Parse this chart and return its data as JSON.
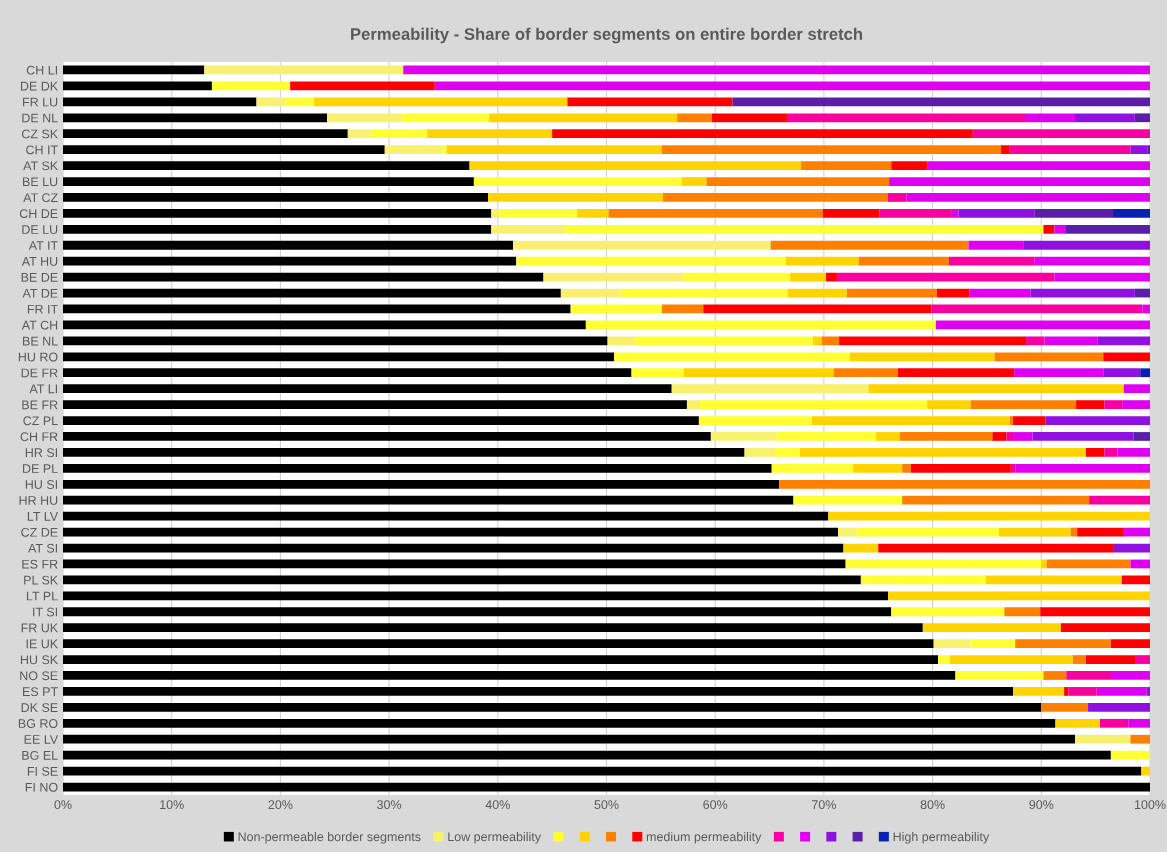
{
  "chart_data": {
    "type": "bar",
    "orientation": "horizontal",
    "stacked": true,
    "title": "Permeability - Share of border segments on entire border stretch",
    "categories": [
      "CH LI",
      "DE DK",
      "FR LU",
      "DE NL",
      "CZ SK",
      "CH IT",
      "AT SK",
      "BE LU",
      "AT CZ",
      "CH DE",
      "DE LU",
      "AT IT",
      "AT HU",
      "BE DE",
      "AT DE",
      "FR IT",
      "AT CH",
      "BE NL",
      "HU RO",
      "DE FR",
      "AT LI",
      "BE FR",
      "CZ PL",
      "CH FR",
      "HR SI",
      "DE PL",
      "HU SI",
      "HR HU",
      "LT LV",
      "CZ DE",
      "AT SI",
      "ES FR",
      "PL SK",
      "LT PL",
      "IT SI",
      "FR UK",
      "IE UK",
      "HU SK",
      "NO SE",
      "ES PT",
      "DK SE",
      "BG RO",
      "EE LV",
      "BG EL",
      "FI SE",
      "FI NO"
    ],
    "series": [
      {
        "name": "Non-permeable border segments",
        "color": "#000000",
        "values": [
          13.0,
          13.7,
          17.8,
          24.3,
          26.2,
          29.6,
          37.4,
          37.8,
          39.1,
          39.4,
          39.4,
          41.4,
          41.7,
          44.2,
          45.8,
          46.7,
          48.1,
          50.1,
          50.7,
          52.3,
          56.0,
          57.4,
          58.5,
          59.6,
          62.7,
          65.2,
          65.9,
          67.2,
          70.4,
          71.3,
          71.8,
          72.0,
          73.4,
          75.9,
          76.2,
          79.1,
          80.1,
          80.5,
          82.1,
          87.4,
          90.0,
          91.3,
          93.1,
          96.4,
          99.2,
          100
        ]
      },
      {
        "name": "Low permeability",
        "color": "#f8f06f",
        "values": [
          18.3,
          null,
          2.6,
          6.9,
          2.1,
          5.3,
          null,
          null,
          null,
          0.7,
          6.8,
          23.7,
          null,
          12.9,
          5.5,
          null,
          null,
          2.6,
          null,
          null,
          18.1,
          1.2,
          null,
          6.1,
          2.8,
          null,
          null,
          null,
          null,
          1.7,
          null,
          null,
          null,
          null,
          null,
          null,
          3.4,
          null,
          null,
          null,
          null,
          null,
          5.1,
          null,
          null,
          null
        ]
      },
      {
        "color": "#ffff33",
        "values": [
          null,
          7.2,
          2.7,
          8.0,
          5.2,
          0.4,
          null,
          19.1,
          null,
          7.2,
          44.0,
          null,
          24.8,
          9.8,
          15.4,
          8.4,
          32.2,
          16.3,
          21.7,
          4.8,
          null,
          20.9,
          10.4,
          9.1,
          2.3,
          7.5,
          null,
          10.0,
          null,
          13.1,
          null,
          18.0,
          11.5,
          null,
          10.4,
          null,
          4.1,
          1.1,
          8.1,
          null,
          null,
          null,
          null,
          3.6,
          null,
          null
        ]
      },
      {
        "color": "#ffd400",
        "values": [
          null,
          null,
          23.3,
          17.3,
          11.5,
          19.8,
          30.5,
          2.3,
          16.1,
          2.9,
          null,
          null,
          6.7,
          3.3,
          5.4,
          null,
          null,
          0.8,
          13.3,
          13.8,
          23.5,
          4.0,
          18.2,
          2.2,
          26.3,
          4.5,
          null,
          null,
          29.6,
          6.6,
          3.2,
          0.5,
          12.5,
          24.1,
          null,
          12.7,
          null,
          11.3,
          null,
          4.7,
          null,
          4.1,
          null,
          null,
          0.8,
          null
        ]
      },
      {
        "color": "#ff8000",
        "values": [
          null,
          null,
          null,
          3.2,
          null,
          31.2,
          8.3,
          16.8,
          20.7,
          19.7,
          null,
          18.2,
          8.3,
          null,
          8.3,
          3.8,
          null,
          1.6,
          10.0,
          5.9,
          null,
          9.7,
          0.3,
          8.5,
          null,
          0.8,
          34.1,
          17.2,
          null,
          0.6,
          null,
          7.7,
          null,
          null,
          3.3,
          null,
          8.8,
          1.2,
          2.1,
          null,
          4.3,
          null,
          1.8,
          null,
          null,
          null
        ]
      },
      {
        "name": "medium permeability",
        "color": "#ff0000",
        "values": [
          null,
          13.3,
          15.2,
          6.9,
          38.7,
          0.8,
          3.3,
          null,
          null,
          5.2,
          1.0,
          null,
          null,
          1.0,
          3.0,
          21.0,
          null,
          17.2,
          4.3,
          10.7,
          null,
          2.6,
          3.0,
          1.3,
          1.7,
          9.2,
          null,
          null,
          null,
          4.3,
          21.6,
          null,
          2.6,
          null,
          10.1,
          8.2,
          3.6,
          4.6,
          null,
          0.4,
          null,
          null,
          null,
          null,
          null,
          null
        ]
      },
      {
        "color": "#f800a0",
        "values": [
          null,
          null,
          null,
          21.9,
          16.3,
          11.1,
          null,
          null,
          1.7,
          6.6,
          null,
          null,
          7.9,
          20.0,
          null,
          19.4,
          null,
          1.7,
          null,
          null,
          null,
          1.7,
          null,
          0.6,
          1.2,
          0.4,
          null,
          5.6,
          null,
          null,
          null,
          null,
          null,
          null,
          null,
          null,
          null,
          1.3,
          4.2,
          2.6,
          null,
          2.6,
          null,
          null,
          null,
          null
        ]
      },
      {
        "color": "#e000f0",
        "values": [
          68.7,
          65.8,
          null,
          4.6,
          null,
          null,
          20.5,
          24.0,
          22.4,
          0.7,
          1.0,
          5.1,
          10.6,
          8.8,
          5.6,
          0.7,
          19.7,
          4.9,
          null,
          8.2,
          2.4,
          2.5,
          null,
          1.8,
          3.0,
          12.4,
          null,
          null,
          null,
          2.4,
          null,
          1.8,
          null,
          null,
          null,
          null,
          null,
          null,
          3.5,
          4.6,
          null,
          2.0,
          null,
          null,
          null,
          null
        ]
      },
      {
        "color": "#9010e0",
        "values": [
          null,
          null,
          null,
          5.5,
          null,
          1.6,
          null,
          null,
          null,
          7.0,
          null,
          11.6,
          null,
          null,
          9.6,
          null,
          null,
          4.8,
          null,
          3.4,
          null,
          null,
          9.6,
          9.3,
          null,
          null,
          null,
          null,
          null,
          null,
          3.4,
          null,
          null,
          null,
          null,
          null,
          null,
          null,
          null,
          0.3,
          5.7,
          null,
          null,
          null,
          null,
          null
        ]
      },
      {
        "color": "#5a1fa8",
        "values": [
          null,
          null,
          38.4,
          1.4,
          null,
          0.2,
          null,
          null,
          null,
          7.2,
          7.8,
          null,
          null,
          null,
          1.4,
          null,
          null,
          null,
          null,
          null,
          null,
          null,
          null,
          1.5,
          null,
          null,
          null,
          null,
          null,
          null,
          null,
          null,
          null,
          null,
          null,
          null,
          null,
          null,
          null,
          null,
          null,
          null,
          null,
          null,
          null,
          null
        ]
      },
      {
        "name": "High permeability",
        "color": "#0a20b0",
        "values": [
          null,
          null,
          null,
          null,
          null,
          null,
          null,
          null,
          null,
          3.4,
          null,
          null,
          null,
          null,
          null,
          null,
          null,
          null,
          null,
          0.9,
          null,
          null,
          null,
          null,
          null,
          null,
          null,
          null,
          null,
          null,
          null,
          null,
          null,
          null,
          null,
          null,
          null,
          null,
          null,
          null,
          null,
          null,
          null,
          null,
          null,
          null
        ]
      }
    ],
    "xlim": [
      0,
      100
    ],
    "xticks": [
      {
        "value": 0,
        "label": "0%"
      },
      {
        "value": 10,
        "label": "10%"
      },
      {
        "value": 20,
        "label": "20%"
      },
      {
        "value": 30,
        "label": "30%"
      },
      {
        "value": 40,
        "label": "40%"
      },
      {
        "value": 50,
        "label": "50%"
      },
      {
        "value": 60,
        "label": "60%"
      },
      {
        "value": 70,
        "label": "70%"
      },
      {
        "value": 80,
        "label": "80%"
      },
      {
        "value": 90,
        "label": "90%"
      },
      {
        "value": 100,
        "label": "100%"
      }
    ],
    "grid": "x",
    "legend": "bottom"
  }
}
